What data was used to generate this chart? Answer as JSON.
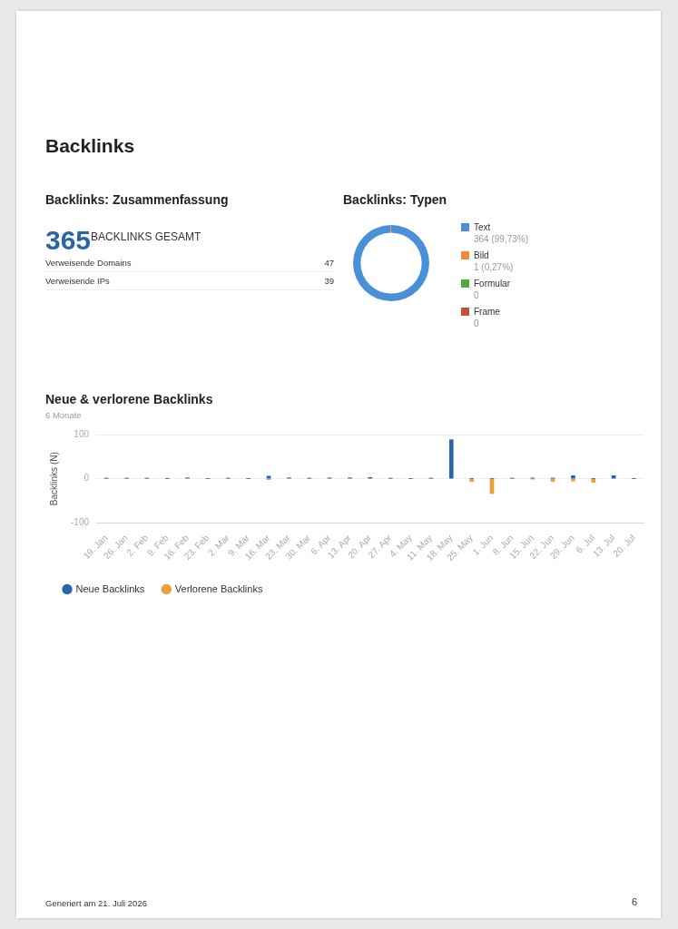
{
  "chart_data": [
    {
      "type": "other",
      "title": "Backlinks: Zusammenfassung",
      "annotations": [
        "Backlinks",
        "365",
        "BACKLINKS GESAMT"
      ],
      "categories": [
        "Verweisende Domains",
        "Verweisende IPs"
      ],
      "values": [
        47,
        39
      ],
      "value_labels": [
        "47",
        "39"
      ]
    },
    {
      "type": "donut",
      "title": "Backlinks: Typen",
      "categories": [
        "Text",
        "Bild",
        "Formular",
        "Frame"
      ],
      "values": [
        364,
        1,
        0,
        0
      ],
      "colors": [
        "#4a90d9",
        "#f0883a",
        "#4caf3a",
        "#c0552f"
      ],
      "value_labels": [
        "364 (99,73%)",
        "1 (0,27%)",
        "0",
        "0"
      ],
      "legend": "right"
    },
    {
      "type": "bar",
      "title": "Neue & verlorene Backlinks",
      "subtitle": "6 Monate",
      "ylabel": "Backlinks (N)",
      "stacked": true,
      "grid": "y",
      "legend": "bottom left",
      "categories": [
        "19. Jan",
        "26. Jan",
        "2. Feb",
        "9. Feb",
        "16. Feb",
        "23. Feb",
        "2. Mar",
        "9. Mar",
        "16. Mar",
        "23. Mar",
        "30. Mar",
        "6. Apr",
        "13. Apr",
        "20. Apr",
        "27. Apr",
        "4. May",
        "11. May",
        "18. May",
        "25. May",
        "1. Jun",
        "8. Jun",
        "15. Jun",
        "22. Jun",
        "29. Jun",
        "6. Jul",
        "13. Jul",
        "20. Jul"
      ],
      "ylim": [
        -100,
        100
      ],
      "yticks": [
        -100,
        0,
        100
      ],
      "series": [
        {
          "name": "Neue Backlinks",
          "color": "#2a64a8",
          "values": [
            1,
            1,
            1,
            0,
            2,
            0,
            1,
            0,
            6,
            2,
            1,
            2,
            2,
            3,
            1,
            0,
            1,
            88,
            0,
            0,
            1,
            2,
            2,
            7,
            0,
            7,
            0
          ]
        },
        {
          "name": "Verlorene Backlinks",
          "color": "#e8a13a",
          "values": [
            0,
            0,
            0,
            0,
            0,
            0,
            0,
            0,
            -2,
            0,
            0,
            0,
            0,
            0,
            0,
            0,
            0,
            0,
            -6,
            -34,
            0,
            -1,
            -6,
            -5,
            -8,
            0,
            0
          ]
        }
      ],
      "annotations": [
        "Generiert am 21. Juli 2026",
        "6"
      ]
    }
  ]
}
